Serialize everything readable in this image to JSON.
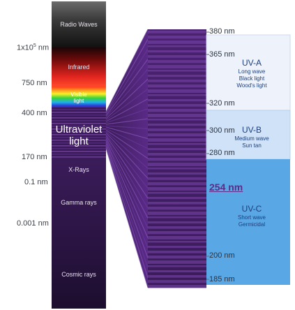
{
  "left_axis": {
    "ticks": [
      {
        "id": "1e5",
        "text_main": "1x10",
        "text_sup": "5",
        "text_unit": " nm"
      },
      {
        "id": "750",
        "text": "750 nm"
      },
      {
        "id": "400",
        "text": "400 nm"
      },
      {
        "id": "170",
        "text": "170 nm"
      },
      {
        "id": "0.1",
        "text": "0.1 nm"
      },
      {
        "id": "0.001",
        "text": "0.001 nm"
      }
    ]
  },
  "spectrum_bands": {
    "radio": "Radio Waves",
    "infrared": "Infrared",
    "visible_line1": "Visible",
    "visible_line2": "light",
    "uv_line1": "Ultraviolet",
    "uv_line2": "light",
    "xrays": "X-Rays",
    "gamma": "Gamma rays",
    "cosmic": "Cosmic rays"
  },
  "uv_scale": {
    "labels": [
      "380 nm",
      "365 nm",
      "320 nm",
      "300 nm",
      "280 nm",
      "200 nm",
      "185 nm"
    ],
    "highlight": "254 nm"
  },
  "uv_bands": [
    {
      "id": "uva",
      "title": "UV-A",
      "sub1": "Long wave",
      "sub2": "Black light",
      "sub3": "Wood's light"
    },
    {
      "id": "uvb",
      "title": "UV-B",
      "sub1": "Medium wave",
      "sub2": "Sun tan"
    },
    {
      "id": "uvc",
      "title": "UV-C",
      "sub1": "Short wave",
      "sub2": "Germicidal"
    }
  ],
  "colors": {
    "uva_box": "#eef3fb",
    "uvb_box": "#cfe2f7",
    "uvc_box": "#5aa7e6",
    "purple_dark": "#2a1338",
    "purple_mid": "#5a2a86",
    "purple_light": "#8f5cc0"
  }
}
